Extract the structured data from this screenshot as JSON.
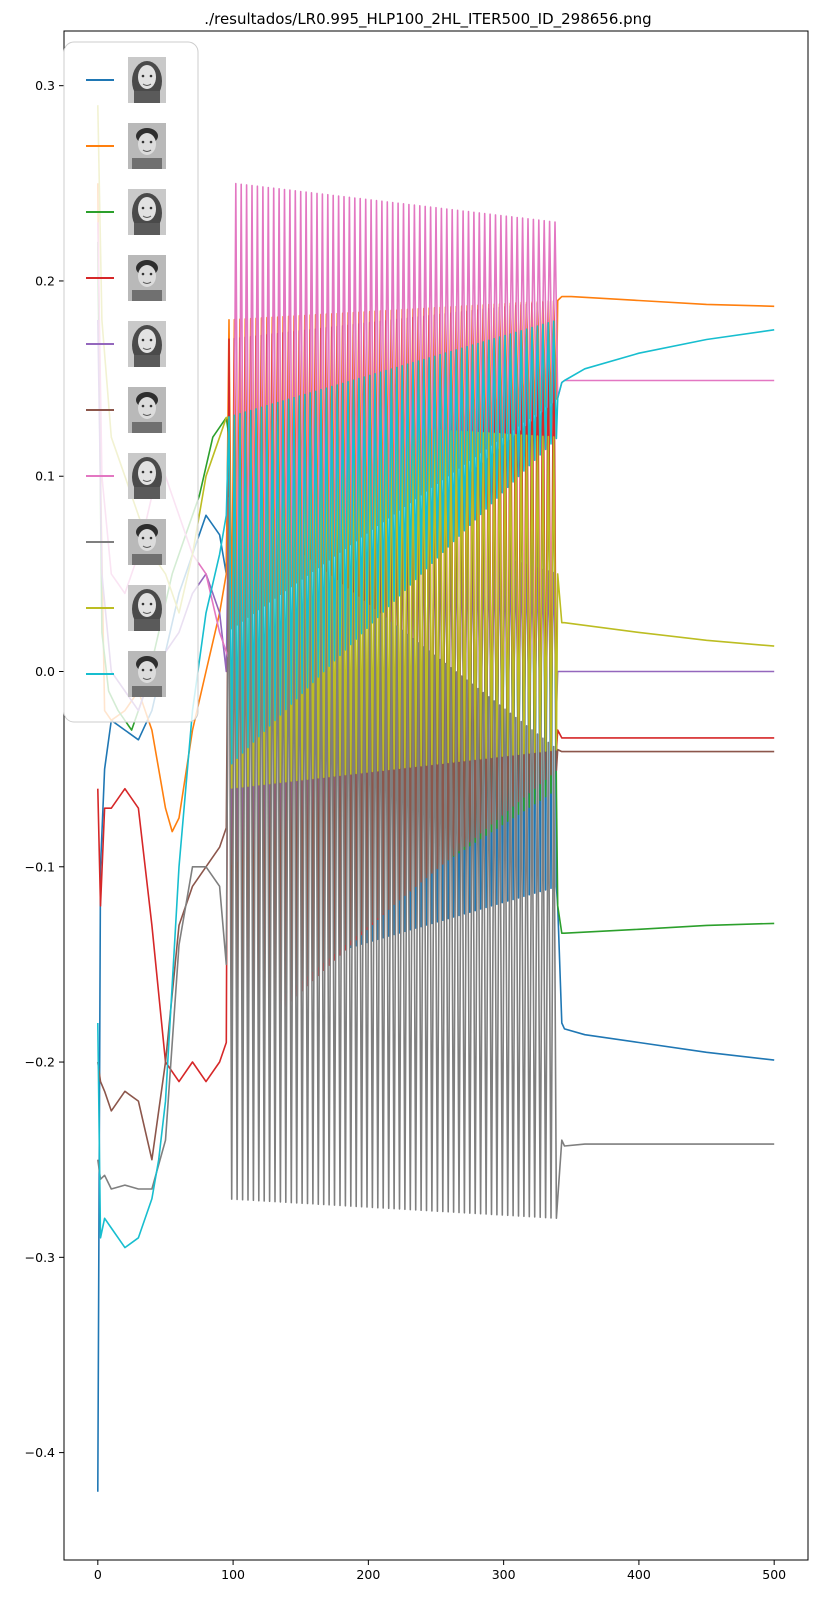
{
  "chart_data": {
    "type": "line",
    "title": "./resultados/LR0.995_HLP100_2HL_ITER500_ID_298656.png",
    "xlabel": "",
    "ylabel": "",
    "xlim": [
      -25,
      525
    ],
    "ylim": [
      -0.455,
      0.328
    ],
    "x_ticks": [
      0,
      100,
      200,
      300,
      400,
      500
    ],
    "y_ticks": [
      0.3,
      0.2,
      0.1,
      0.0,
      -0.1,
      -0.2,
      -0.3,
      -0.4
    ],
    "x_tick_labels": [
      "0",
      "100",
      "200",
      "300",
      "400",
      "500"
    ],
    "y_tick_labels": [
      "0.3",
      "0.2",
      "0.1",
      "0.0",
      "−0.1",
      "−0.2",
      "−0.3",
      "−0.4"
    ],
    "grid": false,
    "legend": {
      "placement": "top-left",
      "entries_are_images": true,
      "entries": [
        {
          "image": "face-photo-woman-1",
          "color": "#1f77b4"
        },
        {
          "image": "face-photo-man-1",
          "color": "#ff7f0e"
        },
        {
          "image": "face-photo-woman-2",
          "color": "#2ca02c"
        },
        {
          "image": "face-photo-man-2",
          "color": "#d62728"
        },
        {
          "image": "face-photo-woman-3",
          "color": "#9467bd"
        },
        {
          "image": "face-photo-man-3",
          "color": "#8c564b"
        },
        {
          "image": "face-photo-woman-4",
          "color": "#e377c2"
        },
        {
          "image": "face-photo-man-4",
          "color": "#7f7f7f"
        },
        {
          "image": "face-photo-woman-5",
          "color": "#bcbd22"
        },
        {
          "image": "face-photo-man-5",
          "color": "#17becf"
        }
      ]
    },
    "series": [
      {
        "color": "#1f77b4",
        "x": [
          0,
          2,
          5,
          10,
          20,
          30,
          40,
          50,
          60,
          70,
          80,
          90,
          95,
          340,
          343,
          345,
          360,
          400,
          450,
          500
        ],
        "y": [
          -0.42,
          -0.1,
          -0.05,
          -0.025,
          -0.03,
          -0.035,
          -0.02,
          0.01,
          0.04,
          0.06,
          0.08,
          0.07,
          0.05,
          -0.12,
          -0.18,
          -0.183,
          -0.186,
          -0.19,
          -0.195,
          -0.199
        ],
        "osc": {
          "start": 95,
          "end": 340,
          "period": 4,
          "lo_start": -0.16,
          "lo_end": -0.11,
          "hi_start": 0.16,
          "hi_end": 0.17
        }
      },
      {
        "color": "#ff7f0e",
        "x": [
          0,
          2,
          5,
          10,
          20,
          30,
          40,
          50,
          55,
          60,
          70,
          80,
          90,
          95,
          340,
          343,
          350,
          400,
          450,
          500
        ],
        "y": [
          0.25,
          0.1,
          -0.02,
          -0.025,
          -0.02,
          -0.01,
          -0.03,
          -0.07,
          -0.082,
          -0.075,
          -0.03,
          0.0,
          0.03,
          0.05,
          0.19,
          0.192,
          0.192,
          0.19,
          0.188,
          0.187
        ],
        "osc": {
          "start": 95,
          "end": 340,
          "period": 4,
          "lo_start": 0.02,
          "lo_end": 0.14,
          "hi_start": 0.18,
          "hi_end": 0.19
        }
      },
      {
        "color": "#2ca02c",
        "x": [
          0,
          3,
          8,
          15,
          25,
          35,
          45,
          55,
          65,
          75,
          85,
          95,
          340,
          343,
          345,
          400,
          450,
          500
        ],
        "y": [
          0.22,
          0.02,
          -0.01,
          -0.02,
          -0.03,
          -0.01,
          0.02,
          0.05,
          0.07,
          0.09,
          0.12,
          0.13,
          -0.12,
          -0.134,
          -0.134,
          -0.132,
          -0.13,
          -0.129
        ],
        "osc": {
          "start": 95,
          "end": 340,
          "period": 4,
          "lo_start": -0.17,
          "lo_end": -0.06,
          "hi_start": 0.12,
          "hi_end": 0.13
        }
      },
      {
        "color": "#d62728",
        "x": [
          0,
          2,
          5,
          10,
          20,
          30,
          40,
          50,
          60,
          70,
          80,
          90,
          95,
          340,
          343,
          345,
          400,
          450,
          500
        ],
        "y": [
          -0.06,
          -0.12,
          -0.07,
          -0.07,
          -0.06,
          -0.07,
          -0.13,
          -0.2,
          -0.21,
          -0.2,
          -0.21,
          -0.2,
          -0.19,
          -0.03,
          -0.034,
          -0.034,
          -0.034,
          -0.034,
          -0.034
        ],
        "osc": {
          "start": 95,
          "end": 340,
          "period": 4,
          "lo_start": -0.2,
          "lo_end": -0.04,
          "hi_start": 0.17,
          "hi_end": 0.19
        }
      },
      {
        "color": "#9467bd",
        "x": [
          0,
          3,
          10,
          20,
          30,
          40,
          50,
          60,
          70,
          80,
          90,
          95,
          340,
          345,
          400,
          450,
          500
        ],
        "y": [
          0.18,
          0.05,
          0.0,
          -0.01,
          -0.02,
          0.0,
          0.01,
          0.02,
          0.04,
          0.05,
          0.03,
          0.0,
          0.0,
          0.0,
          0.0,
          0.0,
          0.0
        ],
        "osc": {
          "start": 95,
          "end": 340,
          "period": 4,
          "lo_start": -0.1,
          "lo_end": -0.02,
          "hi_start": 0.1,
          "hi_end": 0.05
        }
      },
      {
        "color": "#8c564b",
        "x": [
          0,
          2,
          5,
          10,
          20,
          30,
          40,
          50,
          60,
          70,
          80,
          90,
          95,
          340,
          343,
          345,
          400,
          450,
          500
        ],
        "y": [
          -0.2,
          -0.21,
          -0.215,
          -0.225,
          -0.215,
          -0.22,
          -0.25,
          -0.2,
          -0.13,
          -0.11,
          -0.1,
          -0.09,
          -0.08,
          -0.04,
          -0.041,
          -0.041,
          -0.041,
          -0.041,
          -0.041
        ],
        "osc": {
          "start": 95,
          "end": 340,
          "period": 4,
          "lo_start": -0.19,
          "lo_end": -0.05,
          "hi_start": 0.1,
          "hi_end": 0.12
        }
      },
      {
        "color": "#e377c2",
        "x": [
          0,
          3,
          10,
          20,
          30,
          40,
          50,
          60,
          70,
          80,
          90,
          100,
          340,
          343,
          345,
          400,
          450,
          500
        ],
        "y": [
          0.23,
          0.1,
          0.05,
          0.04,
          0.06,
          0.09,
          0.1,
          0.08,
          0.06,
          0.05,
          0.02,
          0.0,
          0.14,
          0.148,
          0.149,
          0.149,
          0.149,
          0.149
        ],
        "osc": {
          "start": 100,
          "end": 340,
          "period": 4,
          "lo_start": 0.0,
          "lo_end": 0.14,
          "hi_start": 0.25,
          "hi_end": 0.23
        }
      },
      {
        "color": "#7f7f7f",
        "x": [
          0,
          2,
          5,
          10,
          20,
          30,
          40,
          50,
          60,
          70,
          80,
          90,
          95,
          340,
          343,
          345,
          360,
          400,
          450,
          500
        ],
        "y": [
          -0.25,
          -0.26,
          -0.258,
          -0.265,
          -0.263,
          -0.265,
          -0.265,
          -0.24,
          -0.14,
          -0.1,
          -0.1,
          -0.11,
          -0.15,
          -0.27,
          -0.24,
          -0.243,
          -0.242,
          -0.242,
          -0.242,
          -0.242
        ],
        "osc": {
          "start": 95,
          "end": 340,
          "period": 4,
          "lo_start": -0.27,
          "lo_end": -0.28,
          "hi_start": 0.09,
          "hi_end": -0.04
        }
      },
      {
        "color": "#bcbd22",
        "x": [
          0,
          3,
          10,
          20,
          30,
          40,
          50,
          60,
          70,
          80,
          90,
          95,
          340,
          343,
          345,
          400,
          450,
          500
        ],
        "y": [
          0.29,
          0.18,
          0.12,
          0.1,
          0.08,
          0.06,
          0.05,
          0.03,
          0.06,
          0.1,
          0.12,
          0.13,
          0.05,
          0.025,
          0.025,
          0.02,
          0.016,
          0.013
        ],
        "osc": {
          "start": 95,
          "end": 340,
          "period": 4,
          "lo_start": -0.06,
          "lo_end": -0.04,
          "hi_start": 0.13,
          "hi_end": 0.12
        }
      },
      {
        "color": "#17becf",
        "x": [
          0,
          2,
          5,
          10,
          20,
          30,
          40,
          45,
          50,
          60,
          70,
          80,
          90,
          95,
          340,
          343,
          345,
          360,
          400,
          450,
          500
        ],
        "y": [
          -0.18,
          -0.29,
          -0.28,
          -0.285,
          -0.295,
          -0.29,
          -0.27,
          -0.25,
          -0.22,
          -0.1,
          -0.02,
          0.03,
          0.06,
          0.08,
          0.14,
          0.148,
          0.149,
          0.155,
          0.163,
          0.17,
          0.175
        ],
        "osc": {
          "start": 95,
          "end": 340,
          "period": 4,
          "lo_start": -0.05,
          "lo_end": 0.12,
          "hi_start": 0.13,
          "hi_end": 0.18
        }
      }
    ]
  }
}
